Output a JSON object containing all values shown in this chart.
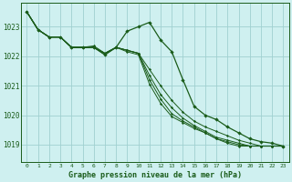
{
  "background_color": "#cff0f0",
  "grid_color": "#a0d0d0",
  "line_color": "#1a5c1a",
  "title": "Graphe pression niveau de la mer (hPa)",
  "xlim": [
    -0.5,
    23.5
  ],
  "ylim": [
    1018.4,
    1023.8
  ],
  "yticks": [
    1019,
    1020,
    1021,
    1022,
    1023
  ],
  "xticks": [
    0,
    1,
    2,
    3,
    4,
    5,
    6,
    7,
    8,
    9,
    10,
    11,
    12,
    13,
    14,
    15,
    16,
    17,
    18,
    19,
    20,
    21,
    22,
    23
  ],
  "main_series": {
    "x": [
      0,
      1,
      2,
      3,
      4,
      5,
      6,
      7,
      8,
      9,
      10,
      11,
      12,
      13,
      14,
      15,
      16,
      17,
      18,
      19,
      20,
      21,
      22,
      23
    ],
    "y": [
      1023.5,
      1022.9,
      1022.65,
      1022.65,
      1022.3,
      1022.3,
      1022.3,
      1022.05,
      1022.3,
      1022.85,
      1023.0,
      1023.15,
      1022.55,
      1022.15,
      1021.2,
      1020.3,
      1020.0,
      1019.85,
      1019.6,
      1019.4,
      1019.2,
      1019.1,
      1019.05,
      1018.95
    ]
  },
  "bg_series": [
    {
      "x": [
        0,
        1,
        2,
        3,
        4,
        5,
        6,
        7,
        8,
        9,
        10,
        11,
        12,
        13,
        14,
        15,
        16,
        17,
        18,
        19,
        20,
        21,
        22,
        23
      ],
      "y": [
        1023.5,
        1022.9,
        1022.65,
        1022.65,
        1022.3,
        1022.3,
        1022.3,
        1022.05,
        1022.3,
        1022.2,
        1022.1,
        1021.55,
        1021.0,
        1020.5,
        1020.1,
        1019.8,
        1019.6,
        1019.45,
        1019.3,
        1019.15,
        1019.05,
        1018.95,
        1018.95,
        1018.95
      ]
    },
    {
      "x": [
        0,
        1,
        2,
        3,
        4,
        5,
        6,
        7,
        8,
        9,
        10,
        11,
        12,
        13,
        14,
        15,
        16,
        17,
        18,
        19,
        20,
        21,
        22,
        23
      ],
      "y": [
        1023.5,
        1022.9,
        1022.65,
        1022.65,
        1022.3,
        1022.3,
        1022.3,
        1022.1,
        1022.3,
        1022.2,
        1022.1,
        1021.35,
        1020.7,
        1020.25,
        1019.9,
        1019.65,
        1019.45,
        1019.25,
        1019.15,
        1019.05,
        1018.95,
        1018.95,
        1018.95,
        1018.95
      ]
    },
    {
      "x": [
        0,
        1,
        2,
        3,
        4,
        5,
        6,
        7,
        8,
        9,
        10,
        11,
        12,
        13,
        14,
        15,
        16,
        17,
        18,
        19,
        20,
        21,
        22,
        23
      ],
      "y": [
        1023.5,
        1022.9,
        1022.65,
        1022.65,
        1022.3,
        1022.3,
        1022.3,
        1022.1,
        1022.3,
        1022.2,
        1022.1,
        1021.2,
        1020.55,
        1020.05,
        1019.8,
        1019.6,
        1019.4,
        1019.2,
        1019.1,
        1019.0,
        1018.95,
        1018.95,
        1018.95,
        1018.95
      ]
    },
    {
      "x": [
        0,
        1,
        2,
        3,
        4,
        5,
        6,
        7,
        8,
        9,
        10,
        11,
        12,
        13,
        14,
        15,
        16,
        17,
        18,
        19,
        20,
        21,
        22,
        23
      ],
      "y": [
        1023.5,
        1022.9,
        1022.65,
        1022.65,
        1022.3,
        1022.3,
        1022.35,
        1022.1,
        1022.3,
        1022.15,
        1022.05,
        1021.05,
        1020.4,
        1019.95,
        1019.75,
        1019.55,
        1019.4,
        1019.2,
        1019.05,
        1018.95,
        1018.95,
        1018.95,
        1018.95,
        1018.95
      ]
    }
  ]
}
